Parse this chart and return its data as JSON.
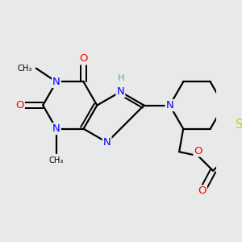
{
  "background_color": "#e8eaea",
  "atom_colors": {
    "N": "#0000ff",
    "O": "#ff0000",
    "S": "#cccc00",
    "C": "#000000",
    "H": "#5f9ea0"
  },
  "bond_color": "#000000",
  "line_width": 1.6,
  "font_size": 9.5
}
